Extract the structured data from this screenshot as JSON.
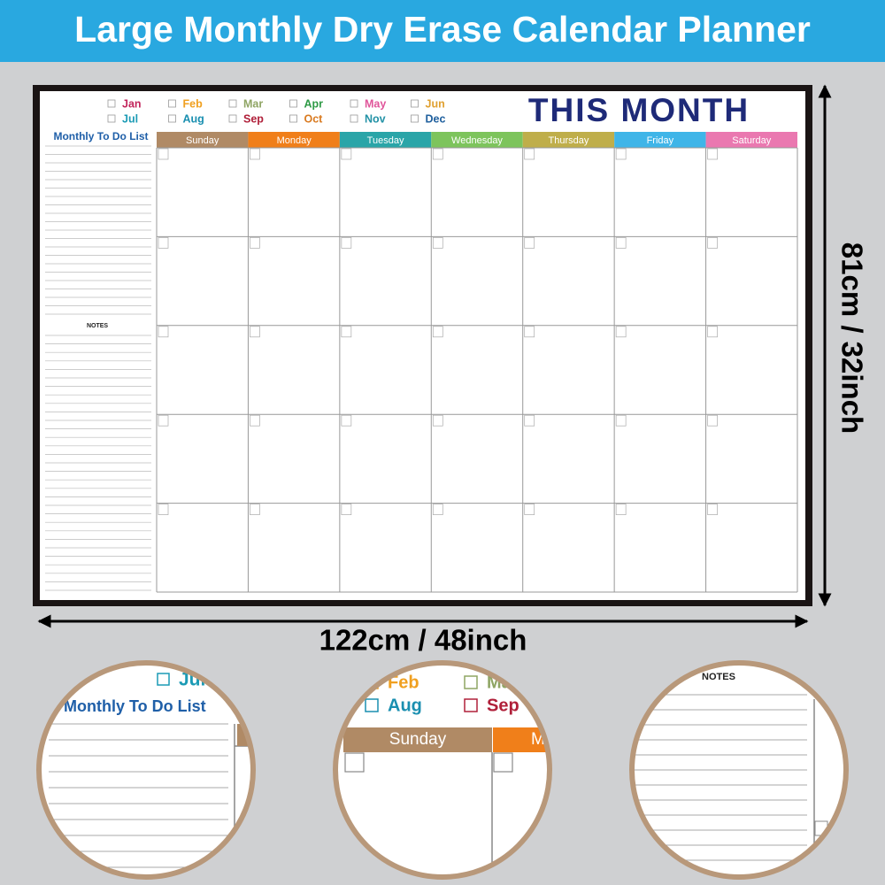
{
  "banner": {
    "title": "Large Monthly Dry Erase Calendar Planner"
  },
  "calendar": {
    "heading": "THIS MONTH",
    "todo_title": "Monthly To Do List",
    "notes_title": "NOTES",
    "months": [
      {
        "label": "Jan",
        "color": "#c2255c"
      },
      {
        "label": "Feb",
        "color": "#f0a020"
      },
      {
        "label": "Mar",
        "color": "#8fa564"
      },
      {
        "label": "Apr",
        "color": "#2e9a45"
      },
      {
        "label": "May",
        "color": "#e0559a"
      },
      {
        "label": "Jun",
        "color": "#e0a030"
      },
      {
        "label": "Jul",
        "color": "#1c9bb5"
      },
      {
        "label": "Aug",
        "color": "#1a8fb0"
      },
      {
        "label": "Sep",
        "color": "#b0203a"
      },
      {
        "label": "Oct",
        "color": "#d97a20"
      },
      {
        "label": "Nov",
        "color": "#2392a6"
      },
      {
        "label": "Dec",
        "color": "#20609e"
      }
    ],
    "days": [
      {
        "label": "Sunday",
        "color": "#b08a65"
      },
      {
        "label": "Monday",
        "color": "#f07f1a"
      },
      {
        "label": "Tuesday",
        "color": "#2aa5a8"
      },
      {
        "label": "Wednesday",
        "color": "#7dc45c"
      },
      {
        "label": "Thursday",
        "color": "#bfae4a"
      },
      {
        "label": "Friday",
        "color": "#3fb5e8"
      },
      {
        "label": "Saturday",
        "color": "#ea78b0"
      }
    ]
  },
  "dimensions": {
    "height": "81cm / 32inch",
    "width": "122cm / 48inch"
  }
}
